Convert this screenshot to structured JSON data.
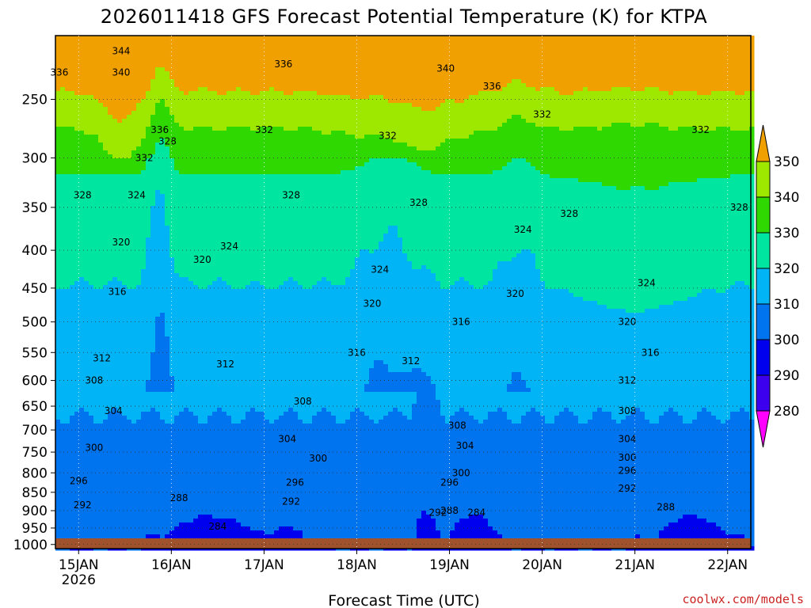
{
  "title": "2026011418 GFS Forecast Potential Temperature (K) for KTPA",
  "credit": "coolwx.com/models",
  "chart_data": {
    "type": "heatmap",
    "title": "2026011418 GFS Forecast Potential Temperature (K) for KTPA",
    "xlabel": "Forecast Time (UTC)",
    "ylabel": "",
    "x_ticks": [
      {
        "label": "15JAN",
        "sub": "2026",
        "t": 6
      },
      {
        "label": "16JAN",
        "sub": "",
        "t": 30
      },
      {
        "label": "17JAN",
        "sub": "",
        "t": 54
      },
      {
        "label": "18JAN",
        "sub": "",
        "t": 78
      },
      {
        "label": "19JAN",
        "sub": "",
        "t": 102
      },
      {
        "label": "20JAN",
        "sub": "",
        "t": 126
      },
      {
        "label": "21JAN",
        "sub": "",
        "t": 150
      },
      {
        "label": "22JAN",
        "sub": "",
        "t": 174
      }
    ],
    "x_range_hours": [
      0,
      180
    ],
    "y_axis_unit": "hPa",
    "y_ticks": [
      250,
      300,
      350,
      400,
      450,
      500,
      550,
      600,
      650,
      700,
      750,
      800,
      850,
      900,
      950,
      1000
    ],
    "y_range": [
      205,
      1013
    ],
    "y_scale": "log",
    "grid": true,
    "colorbar": {
      "levels": [
        280,
        290,
        300,
        310,
        320,
        330,
        340,
        350
      ],
      "tick_labels": [
        "280",
        "290",
        "300",
        "310",
        "320",
        "330",
        "340",
        "350"
      ],
      "colors": [
        "#8e00e8",
        "#3c00ee",
        "#0000ee",
        "#0074ee",
        "#00b4f6",
        "#00e6a0",
        "#2ed800",
        "#9ee800",
        "#f0f000"
      ],
      "extend_low_color": "#ff00ff",
      "extend_high_color": "#f0a000"
    },
    "contour_interval_K": 4,
    "contour_labels": [
      {
        "text": "344",
        "t": 17,
        "p": 215
      },
      {
        "text": "340",
        "t": 17,
        "p": 230
      },
      {
        "text": "336",
        "t": 1,
        "p": 230
      },
      {
        "text": "336",
        "t": 59,
        "p": 224
      },
      {
        "text": "340",
        "t": 101,
        "p": 227
      },
      {
        "text": "336",
        "t": 113,
        "p": 240
      },
      {
        "text": "332",
        "t": 126,
        "p": 262
      },
      {
        "text": "332",
        "t": 167,
        "p": 275
      },
      {
        "text": "336",
        "t": 27,
        "p": 275
      },
      {
        "text": "328",
        "t": 29,
        "p": 285
      },
      {
        "text": "332",
        "t": 23,
        "p": 300
      },
      {
        "text": "332",
        "t": 54,
        "p": 275
      },
      {
        "text": "332",
        "t": 86,
        "p": 280
      },
      {
        "text": "328",
        "t": 7,
        "p": 337
      },
      {
        "text": "324",
        "t": 21,
        "p": 337
      },
      {
        "text": "328",
        "t": 61,
        "p": 337
      },
      {
        "text": "328",
        "t": 94,
        "p": 345
      },
      {
        "text": "324",
        "t": 121,
        "p": 375
      },
      {
        "text": "328",
        "t": 133,
        "p": 357
      },
      {
        "text": "328",
        "t": 177,
        "p": 350
      },
      {
        "text": "320",
        "t": 17,
        "p": 390
      },
      {
        "text": "324",
        "t": 45,
        "p": 395
      },
      {
        "text": "320",
        "t": 38,
        "p": 412
      },
      {
        "text": "324",
        "t": 84,
        "p": 425
      },
      {
        "text": "324",
        "t": 153,
        "p": 443
      },
      {
        "text": "316",
        "t": 16,
        "p": 455
      },
      {
        "text": "320",
        "t": 82,
        "p": 472
      },
      {
        "text": "320",
        "t": 119,
        "p": 458
      },
      {
        "text": "320",
        "t": 148,
        "p": 500
      },
      {
        "text": "316",
        "t": 105,
        "p": 500
      },
      {
        "text": "312",
        "t": 12,
        "p": 560
      },
      {
        "text": "316",
        "t": 78,
        "p": 550
      },
      {
        "text": "312",
        "t": 44,
        "p": 570
      },
      {
        "text": "312",
        "t": 92,
        "p": 565
      },
      {
        "text": "316",
        "t": 154,
        "p": 550
      },
      {
        "text": "308",
        "t": 10,
        "p": 600
      },
      {
        "text": "312",
        "t": 148,
        "p": 600
      },
      {
        "text": "304",
        "t": 15,
        "p": 660
      },
      {
        "text": "308",
        "t": 64,
        "p": 640
      },
      {
        "text": "308",
        "t": 148,
        "p": 660
      },
      {
        "text": "308",
        "t": 104,
        "p": 690
      },
      {
        "text": "304",
        "t": 60,
        "p": 720
      },
      {
        "text": "304",
        "t": 148,
        "p": 720
      },
      {
        "text": "304",
        "t": 106,
        "p": 735
      },
      {
        "text": "300",
        "t": 10,
        "p": 740
      },
      {
        "text": "300",
        "t": 68,
        "p": 765
      },
      {
        "text": "300",
        "t": 148,
        "p": 763
      },
      {
        "text": "300",
        "t": 105,
        "p": 800
      },
      {
        "text": "296",
        "t": 6,
        "p": 820
      },
      {
        "text": "296",
        "t": 62,
        "p": 825
      },
      {
        "text": "296",
        "t": 148,
        "p": 795
      },
      {
        "text": "296",
        "t": 102,
        "p": 825
      },
      {
        "text": "292",
        "t": 7,
        "p": 885
      },
      {
        "text": "292",
        "t": 61,
        "p": 875
      },
      {
        "text": "292",
        "t": 148,
        "p": 840
      },
      {
        "text": "288",
        "t": 32,
        "p": 865
      },
      {
        "text": "288",
        "t": 102,
        "p": 900
      },
      {
        "text": "288",
        "t": 158,
        "p": 890
      },
      {
        "text": "292",
        "t": 99,
        "p": 905
      },
      {
        "text": "284",
        "t": 109,
        "p": 905
      },
      {
        "text": "284",
        "t": 42,
        "p": 945
      }
    ]
  }
}
